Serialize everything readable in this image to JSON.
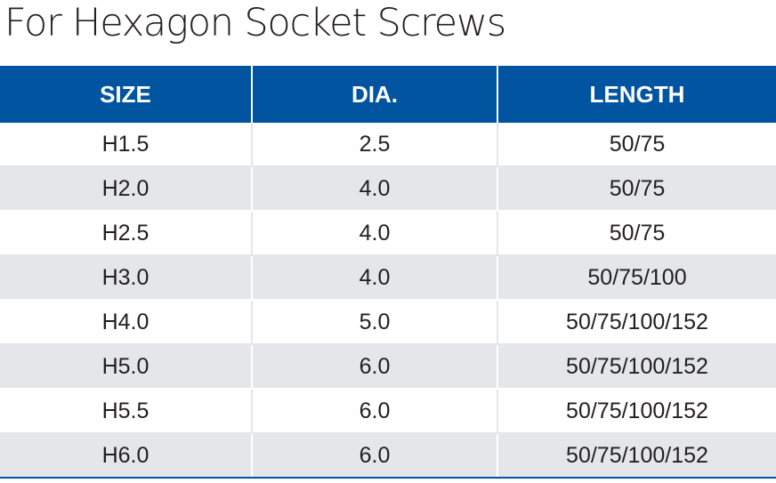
{
  "title": "For Hexagon Socket Screws",
  "table": {
    "headers": [
      "SIZE",
      "DIA.",
      "LENGTH"
    ],
    "rows": [
      [
        "H1.5",
        "2.5",
        "50/75"
      ],
      [
        "H2.0",
        "4.0",
        "50/75"
      ],
      [
        "H2.5",
        "4.0",
        "50/75"
      ],
      [
        "H3.0",
        "4.0",
        "50/75/100"
      ],
      [
        "H4.0",
        "5.0",
        "50/75/100/152"
      ],
      [
        "H5.0",
        "6.0",
        "50/75/100/152"
      ],
      [
        "H5.5",
        "6.0",
        "50/75/100/152"
      ],
      [
        "H6.0",
        "6.0",
        "50/75/100/152"
      ]
    ]
  },
  "colors": {
    "header_bg": "#0054a0",
    "header_text": "#ffffff",
    "stripe_bg": "#e4e6ea",
    "text": "#231f20"
  }
}
